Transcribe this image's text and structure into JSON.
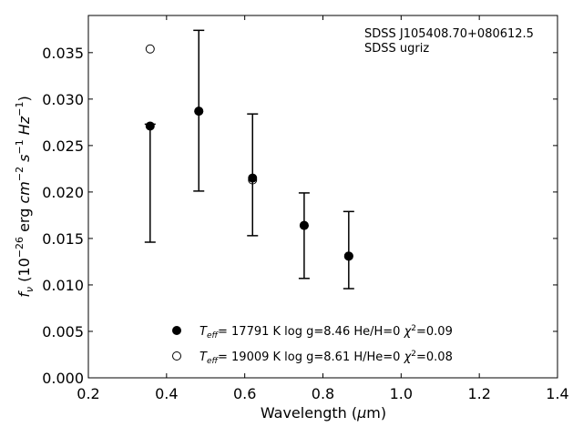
{
  "chart_data": {
    "type": "scatter",
    "xlabel_prefix": "Wavelength (",
    "xlabel_mu": "μ",
    "xlabel_suffix": "m)",
    "ylabel": {
      "f": "f",
      "nu": "ν",
      "open": " (10",
      "exp1": "−26",
      "erg": " erg ",
      "cm": "cm",
      "exp2": "−2",
      "s": " s",
      "exp3": "−1",
      "hz": " Hz",
      "exp4": "−1",
      "close": ")"
    },
    "xlim": [
      0.2,
      1.4
    ],
    "ylim": [
      0.0,
      0.039
    ],
    "xticks": [
      0.2,
      0.4,
      0.6,
      0.8,
      1.0,
      1.2,
      1.4
    ],
    "xtick_labels": [
      "0.2",
      "0.4",
      "0.6",
      "0.8",
      "1.0",
      "1.2",
      "1.4"
    ],
    "yticks": [
      0.0,
      0.005,
      0.01,
      0.015,
      0.02,
      0.025,
      0.03,
      0.035
    ],
    "ytick_labels": [
      "0.000",
      "0.005",
      "0.010",
      "0.015",
      "0.020",
      "0.025",
      "0.030",
      "0.035"
    ],
    "annotations": [
      "SDSS J105408.70+080612.5",
      "SDSS ugriz"
    ],
    "observed_errors": [
      {
        "x": 0.358,
        "y_low": 0.0146,
        "y_high": 0.0273
      },
      {
        "x": 0.4825,
        "y_low": 0.0201,
        "y_high": 0.0374
      },
      {
        "x": 0.62,
        "y_low": 0.0153,
        "y_high": 0.0284
      },
      {
        "x": 0.752,
        "y_low": 0.0107,
        "y_high": 0.0199
      },
      {
        "x": 0.866,
        "y_low": 0.0096,
        "y_high": 0.0179
      }
    ],
    "series": [
      {
        "marker": "filled",
        "legend": {
          "T": "T",
          "sub": "eff",
          "rest": "= 17791 K  log g=8.46  He/H=0  ",
          "chi": "χ",
          "sup": "2",
          "val": "=0.09"
        },
        "x": [
          0.358,
          0.4825,
          0.62,
          0.752,
          0.866
        ],
        "y": [
          0.0271,
          0.0287,
          0.0215,
          0.0164,
          0.0131
        ]
      },
      {
        "marker": "open",
        "legend": {
          "T": "T",
          "sub": "eff",
          "rest": "= 19009 K  log g=8.61  H/He=0  ",
          "chi": "χ",
          "sup": "2",
          "val": "=0.08"
        },
        "x": [
          0.358,
          0.4825,
          0.62,
          0.752,
          0.866
        ],
        "y": [
          0.0354,
          0.0287,
          0.0213,
          0.0164,
          0.0131
        ]
      }
    ],
    "legend_placement": "lower-center",
    "grid": false
  }
}
